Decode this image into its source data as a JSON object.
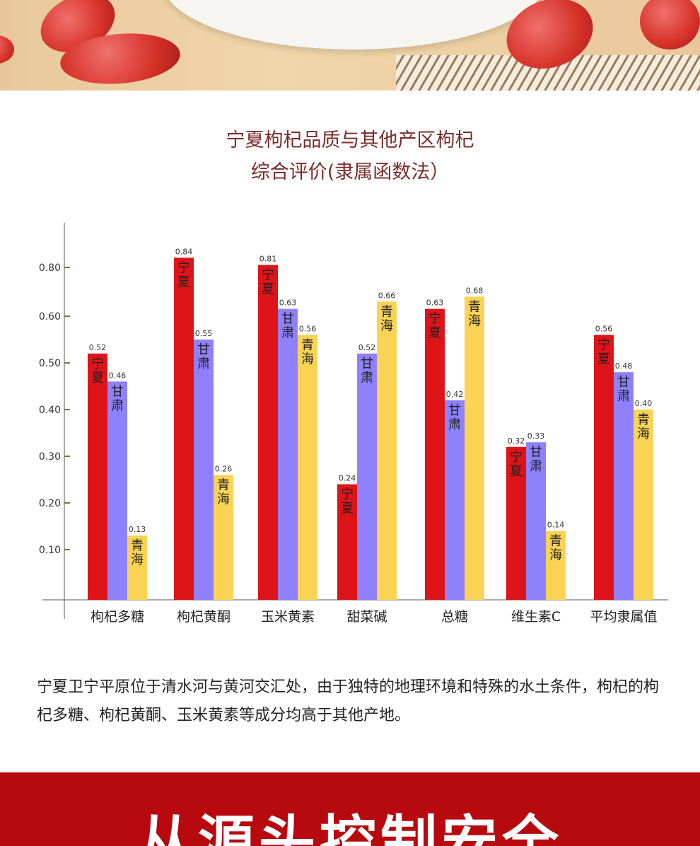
{
  "title": {
    "line1": "宁夏枸杞品质与其他产区枸杞",
    "line2": "综合评价(隶属函数法）"
  },
  "chart_data": {
    "type": "bar",
    "categories": [
      "枸杞多糖",
      "枸杞黄酮",
      "玉米黄素",
      "甜菜碱",
      "总糖",
      "维生素C",
      "平均隶属值"
    ],
    "series": [
      {
        "name": "宁夏",
        "color": "#df1419",
        "values": [
          0.52,
          0.84,
          0.81,
          0.24,
          0.63,
          0.32,
          0.56
        ]
      },
      {
        "name": "甘肃",
        "color": "#8f80fb",
        "values": [
          0.46,
          0.55,
          0.63,
          0.52,
          0.42,
          0.33,
          0.48
        ]
      },
      {
        "name": "青海",
        "color": "#fad355",
        "values": [
          0.13,
          0.26,
          0.56,
          0.66,
          0.68,
          0.14,
          0.4
        ]
      }
    ],
    "value_labels": [
      [
        "0.52",
        "0.84",
        "0.81",
        "0.24",
        "0.63",
        "0.32",
        "0.56"
      ],
      [
        "0.46",
        "0.55",
        "0.63",
        "0.52",
        "0.42",
        "0.33",
        "0.48"
      ],
      [
        "0.13",
        "0.26",
        "0.56",
        "0.66",
        "0.68",
        "0.14",
        "0.40"
      ]
    ],
    "yticks": [
      "0.10",
      "0.20",
      "0.30",
      "0.40",
      "0.50",
      "0.60",
      "0.80"
    ],
    "grid": false,
    "legend": "labels inside bars"
  },
  "description": "宁夏卫宁平原位于清水河与黄河交汇处，由于独特的地理环境和特殊的水土条件，枸杞的枸杞多糖、枸杞黄酮、玉米黄素等成分均高于其他产地。",
  "banner": "从源头控制安全"
}
